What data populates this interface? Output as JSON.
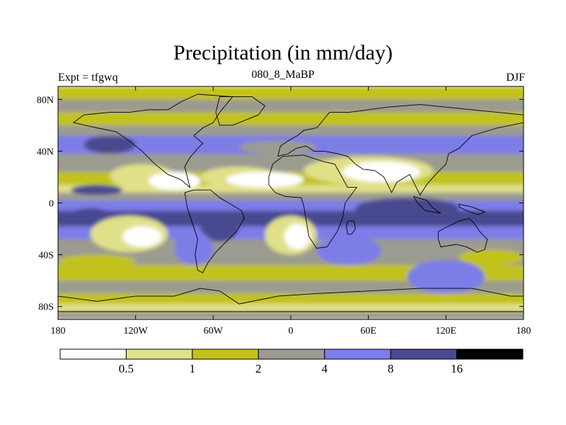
{
  "chart_data": {
    "type": "heatmap",
    "title": "Precipitation (in mm/day)",
    "left_string": "Expt = tfgwq",
    "center_string": "080_8_MaBP",
    "right_string": "DJF",
    "x_ticks": [
      "180",
      "120W",
      "60W",
      "0",
      "60E",
      "120E",
      "180"
    ],
    "x_tick_values": [
      -180,
      -120,
      -60,
      0,
      60,
      120,
      180
    ],
    "y_ticks": [
      "80N",
      "40N",
      "0",
      "40S",
      "80S"
    ],
    "y_tick_values": [
      80,
      40,
      0,
      -40,
      -80
    ],
    "xlim": [
      -180,
      180
    ],
    "ylim": [
      -90,
      90
    ],
    "colorbar": {
      "levels": [
        "0.5",
        "1",
        "2",
        "4",
        "8",
        "16"
      ],
      "colors": [
        "#ffffff",
        "#e0e08a",
        "#c3c21a",
        "#9b9b90",
        "#7d7de8",
        "#4a4a90",
        "#000000"
      ]
    },
    "bands": [
      {
        "lat_top": 90,
        "lat_bottom": 80,
        "level": 2
      },
      {
        "lat_top": 80,
        "lat_bottom": 70,
        "level": 3
      },
      {
        "lat_top": 70,
        "lat_bottom": 60,
        "level": 2
      },
      {
        "lat_top": 60,
        "lat_bottom": 52,
        "level": 3
      },
      {
        "lat_top": 52,
        "lat_bottom": 38,
        "level": 4
      },
      {
        "lat_top": 38,
        "lat_bottom": 24,
        "level": 3
      },
      {
        "lat_top": 24,
        "lat_bottom": 14,
        "level": 2
      },
      {
        "lat_top": 14,
        "lat_bottom": 8,
        "level": 1
      },
      {
        "lat_top": 8,
        "lat_bottom": 2,
        "level": 3
      },
      {
        "lat_top": 2,
        "lat_bottom": -6,
        "level": 4
      },
      {
        "lat_top": -6,
        "lat_bottom": -18,
        "level": 5
      },
      {
        "lat_top": -18,
        "lat_bottom": -28,
        "level": 4
      },
      {
        "lat_top": -28,
        "lat_bottom": -48,
        "level": 3
      },
      {
        "lat_top": -48,
        "lat_bottom": -60,
        "level": 2
      },
      {
        "lat_top": -60,
        "lat_bottom": -70,
        "level": 3
      },
      {
        "lat_top": -70,
        "lat_bottom": -78,
        "level": 2
      },
      {
        "lat_top": -78,
        "lat_bottom": -84,
        "level": 1
      },
      {
        "lat_top": -84,
        "lat_bottom": -90,
        "level": 3
      }
    ],
    "patches": [
      {
        "lon": [
          -140,
          -90
        ],
        "lat": [
          30,
          12
        ],
        "level": 1
      },
      {
        "lon": [
          -110,
          -70
        ],
        "lat": [
          24,
          10
        ],
        "level": 0
      },
      {
        "lon": [
          -70,
          -10
        ],
        "lat": [
          28,
          12
        ],
        "level": 1
      },
      {
        "lon": [
          -50,
          10
        ],
        "lat": [
          24,
          12
        ],
        "level": 0
      },
      {
        "lon": [
          10,
          110
        ],
        "lat": [
          36,
          14
        ],
        "level": 1
      },
      {
        "lon": [
          40,
          100
        ],
        "lat": [
          32,
          16
        ],
        "level": 0
      },
      {
        "lon": [
          -170,
          -130
        ],
        "lat": [
          14,
          6
        ],
        "level": 5
      },
      {
        "lon": [
          50,
          130
        ],
        "lat": [
          4,
          -12
        ],
        "level": 5
      },
      {
        "lon": [
          -170,
          -140
        ],
        "lat": [
          -4,
          -14
        ],
        "level": 5
      },
      {
        "lon": [
          -155,
          -95
        ],
        "lat": [
          -10,
          -38
        ],
        "level": 1
      },
      {
        "lon": [
          -130,
          -100
        ],
        "lat": [
          -18,
          -34
        ],
        "level": 0
      },
      {
        "lon": [
          -20,
          20
        ],
        "lat": [
          -10,
          -40
        ],
        "level": 1
      },
      {
        "lon": [
          -5,
          15
        ],
        "lat": [
          -16,
          -36
        ],
        "level": 0
      },
      {
        "lon": [
          -70,
          -40
        ],
        "lat": [
          -6,
          -30
        ],
        "level": 5
      },
      {
        "lon": [
          -90,
          -60
        ],
        "lat": [
          -22,
          -48
        ],
        "level": 4
      },
      {
        "lon": [
          20,
          70
        ],
        "lat": [
          -26,
          -48
        ],
        "level": 4
      },
      {
        "lon": [
          90,
          150
        ],
        "lat": [
          -44,
          -70
        ],
        "level": 4
      },
      {
        "lon": [
          -160,
          -120
        ],
        "lat": [
          52,
          38
        ],
        "level": 5
      },
      {
        "lon": [
          -40,
          20
        ],
        "lat": [
          48,
          38
        ],
        "level": 3
      },
      {
        "lon": [
          130,
          180
        ],
        "lat": [
          -36,
          -48
        ],
        "level": 2
      },
      {
        "lon": [
          -180,
          -120
        ],
        "lat": [
          -40,
          -50
        ],
        "level": 2
      }
    ],
    "outlines": [
      [
        [
          -75,
          52
        ],
        [
          -68,
          58
        ],
        [
          -60,
          62
        ],
        [
          -55,
          70
        ],
        [
          -45,
          82
        ],
        [
          -72,
          84
        ],
        [
          -85,
          78
        ],
        [
          -95,
          72
        ],
        [
          -110,
          72
        ],
        [
          -125,
          70
        ],
        [
          -140,
          70
        ],
        [
          -160,
          68
        ],
        [
          -168,
          62
        ],
        [
          -150,
          58
        ],
        [
          -135,
          55
        ],
        [
          -125,
          48
        ],
        [
          -115,
          40
        ],
        [
          -105,
          30
        ],
        [
          -95,
          22
        ],
        [
          -85,
          18
        ],
        [
          -78,
          12
        ],
        [
          -80,
          20
        ],
        [
          -82,
          28
        ],
        [
          -78,
          35
        ],
        [
          -72,
          42
        ],
        [
          -68,
          46
        ],
        [
          -75,
          52
        ]
      ],
      [
        [
          -82,
          8
        ],
        [
          -75,
          10
        ],
        [
          -62,
          10
        ],
        [
          -55,
          4
        ],
        [
          -48,
          0
        ],
        [
          -38,
          -6
        ],
        [
          -36,
          -12
        ],
        [
          -42,
          -22
        ],
        [
          -50,
          -30
        ],
        [
          -58,
          -38
        ],
        [
          -64,
          -46
        ],
        [
          -68,
          -54
        ],
        [
          -72,
          -52
        ],
        [
          -74,
          -40
        ],
        [
          -72,
          -28
        ],
        [
          -76,
          -16
        ],
        [
          -80,
          -4
        ],
        [
          -82,
          8
        ]
      ],
      [
        [
          -17,
          20
        ],
        [
          -14,
          30
        ],
        [
          -6,
          36
        ],
        [
          10,
          37
        ],
        [
          25,
          32
        ],
        [
          34,
          30
        ],
        [
          44,
          12
        ],
        [
          51,
          12
        ],
        [
          42,
          0
        ],
        [
          40,
          -12
        ],
        [
          36,
          -22
        ],
        [
          28,
          -34
        ],
        [
          20,
          -35
        ],
        [
          14,
          -26
        ],
        [
          12,
          -14
        ],
        [
          10,
          -2
        ],
        [
          8,
          4
        ],
        [
          -4,
          5
        ],
        [
          -12,
          8
        ],
        [
          -17,
          14
        ],
        [
          -17,
          20
        ]
      ],
      [
        [
          -10,
          36
        ],
        [
          -8,
          44
        ],
        [
          -2,
          48
        ],
        [
          5,
          52
        ],
        [
          10,
          56
        ],
        [
          20,
          58
        ],
        [
          30,
          70
        ],
        [
          45,
          70
        ],
        [
          60,
          72
        ],
        [
          75,
          74
        ],
        [
          100,
          76
        ],
        [
          120,
          74
        ],
        [
          140,
          72
        ],
        [
          160,
          70
        ],
        [
          180,
          68
        ],
        [
          180,
          62
        ],
        [
          160,
          58
        ],
        [
          140,
          52
        ],
        [
          130,
          42
        ],
        [
          122,
          38
        ],
        [
          120,
          30
        ],
        [
          112,
          22
        ],
        [
          105,
          14
        ],
        [
          100,
          6
        ],
        [
          96,
          14
        ],
        [
          92,
          22
        ],
        [
          82,
          16
        ],
        [
          78,
          8
        ],
        [
          72,
          20
        ],
        [
          65,
          25
        ],
        [
          56,
          26
        ],
        [
          50,
          30
        ],
        [
          44,
          36
        ],
        [
          36,
          38
        ],
        [
          26,
          40
        ],
        [
          18,
          40
        ],
        [
          12,
          44
        ],
        [
          4,
          42
        ],
        [
          -2,
          38
        ],
        [
          -10,
          36
        ]
      ],
      [
        [
          114,
          -22
        ],
        [
          122,
          -18
        ],
        [
          130,
          -14
        ],
        [
          138,
          -12
        ],
        [
          142,
          -16
        ],
        [
          146,
          -22
        ],
        [
          152,
          -28
        ],
        [
          150,
          -36
        ],
        [
          144,
          -38
        ],
        [
          136,
          -34
        ],
        [
          128,
          -32
        ],
        [
          116,
          -34
        ],
        [
          114,
          -28
        ],
        [
          114,
          -22
        ]
      ],
      [
        [
          -180,
          -72
        ],
        [
          -150,
          -76
        ],
        [
          -120,
          -72
        ],
        [
          -90,
          -72
        ],
        [
          -70,
          -66
        ],
        [
          -55,
          -68
        ],
        [
          -40,
          -78
        ],
        [
          -10,
          -72
        ],
        [
          20,
          -70
        ],
        [
          60,
          -68
        ],
        [
          100,
          -66
        ],
        [
          140,
          -66
        ],
        [
          170,
          -72
        ],
        [
          180,
          -72
        ],
        [
          180,
          -84
        ],
        [
          -180,
          -84
        ],
        [
          -180,
          -72
        ]
      ],
      [
        [
          44,
          -14
        ],
        [
          49,
          -14
        ],
        [
          50,
          -20
        ],
        [
          47,
          -24
        ],
        [
          44,
          -24
        ],
        [
          43,
          -18
        ],
        [
          44,
          -14
        ]
      ],
      [
        [
          -55,
          60
        ],
        [
          -45,
          60
        ],
        [
          -25,
          68
        ],
        [
          -20,
          75
        ],
        [
          -30,
          82
        ],
        [
          -55,
          82
        ],
        [
          -58,
          70
        ],
        [
          -55,
          60
        ]
      ],
      [
        [
          95,
          5
        ],
        [
          105,
          2
        ],
        [
          110,
          -4
        ],
        [
          116,
          -8
        ],
        [
          104,
          -6
        ],
        [
          98,
          0
        ],
        [
          95,
          5
        ]
      ],
      [
        [
          130,
          -1
        ],
        [
          140,
          -3
        ],
        [
          150,
          -7
        ],
        [
          145,
          -9
        ],
        [
          136,
          -6
        ],
        [
          130,
          -3
        ],
        [
          130,
          -1
        ]
      ]
    ]
  }
}
